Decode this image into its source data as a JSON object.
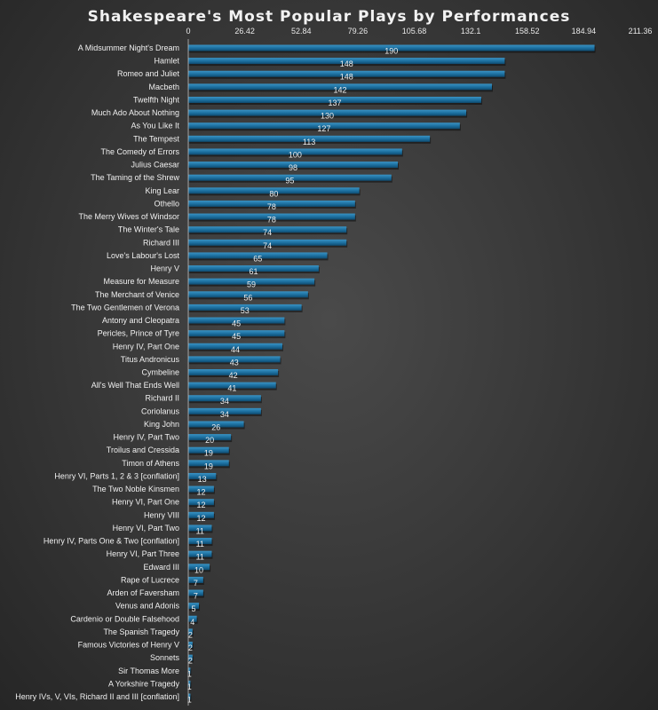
{
  "chart_data": {
    "type": "bar",
    "orientation": "horizontal",
    "title": "Shakespeare's Most Popular Plays by Performances",
    "xlabel": "",
    "ylabel": "",
    "xlim": [
      0,
      211.36
    ],
    "x_ticks": [
      "0",
      "26.42",
      "52.84",
      "79.26",
      "105.68",
      "132.1",
      "158.52",
      "184.94",
      "211.36"
    ],
    "x_axis_position": "top",
    "grid": false,
    "bar_color": "#1b6e9e",
    "categories": [
      "A Midsummer Night's Dream",
      "Hamlet",
      "Romeo and Juliet",
      "Macbeth",
      "Twelfth Night",
      "Much Ado About Nothing",
      "As You Like It",
      "The Tempest",
      "The Comedy of Errors",
      "Julius Caesar",
      "The Taming of the Shrew",
      "King Lear",
      "Othello",
      "The Merry Wives of Windsor",
      "The Winter's Tale",
      "Richard III",
      "Love's Labour's Lost",
      "Henry V",
      "Measure for Measure",
      "The Merchant of Venice",
      "The Two Gentlemen of Verona",
      "Antony and Cleopatra",
      "Pericles, Prince of Tyre",
      "Henry IV, Part One",
      "Titus Andronicus",
      "Cymbeline",
      "All's Well That Ends Well",
      "Richard II",
      "Coriolanus",
      "King John",
      "Henry IV, Part Two",
      "Troilus and Cressida",
      "Timon of Athens",
      "Henry VI, Parts 1, 2 & 3 [conflation]",
      "The Two Noble Kinsmen",
      "Henry VI, Part One",
      "Henry VIII",
      "Henry VI, Part Two",
      "Henry IV, Parts One & Two [conflation]",
      "Henry VI, Part Three",
      "Edward III",
      "Rape of Lucrece",
      "Arden of Faversham",
      "Venus and Adonis",
      "Cardenio or Double Falsehood",
      "The Spanish Tragedy",
      "Famous Victories of Henry V",
      "Sonnets",
      "Sir Thomas More",
      "A Yorkshire Tragedy",
      "Henry IVs, V, VIs, Richard II and III [conflation]"
    ],
    "values": [
      190,
      148,
      148,
      142,
      137,
      130,
      127,
      113,
      100,
      98,
      95,
      80,
      78,
      78,
      74,
      74,
      65,
      61,
      59,
      56,
      53,
      45,
      45,
      44,
      43,
      42,
      41,
      34,
      34,
      26,
      20,
      19,
      19,
      13,
      12,
      12,
      12,
      11,
      11,
      11,
      10,
      7,
      7,
      5,
      4,
      2,
      2,
      2,
      1,
      1,
      1
    ]
  }
}
